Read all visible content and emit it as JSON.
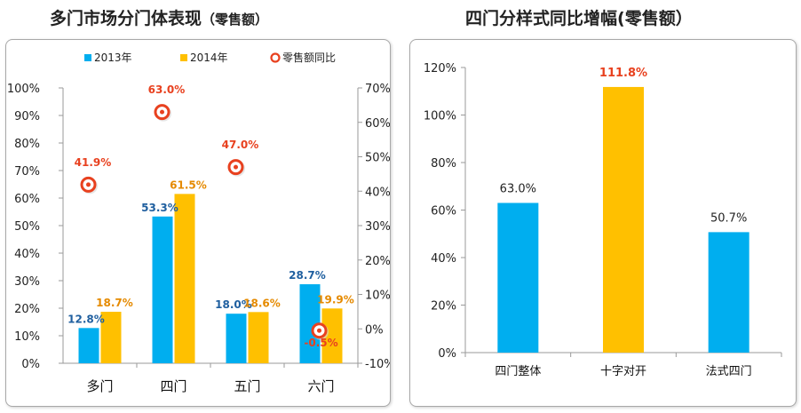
{
  "chart_data": [
    {
      "type": "bar+scatter",
      "title": "多门市场分门体表现",
      "subtitle": "（零售额）",
      "categories": [
        "多门",
        "四门",
        "五门",
        "六门"
      ],
      "series": [
        {
          "name": "2013年",
          "type": "bar",
          "axis": "left",
          "color": "#00AEEF",
          "values": [
            12.8,
            53.3,
            18.0,
            28.7
          ],
          "labels": [
            "12.8%",
            "53.3%",
            "18.0%",
            "28.7%"
          ]
        },
        {
          "name": "2014年",
          "type": "bar",
          "axis": "left",
          "color": "#FFC000",
          "values": [
            18.7,
            61.5,
            18.6,
            19.9
          ],
          "labels": [
            "18.7%",
            "61.5%",
            "18.6%",
            "19.9%"
          ]
        },
        {
          "name": "零售额同比",
          "type": "scatter",
          "axis": "right",
          "color": "#E8411F",
          "values": [
            41.9,
            63.0,
            47.0,
            -0.5
          ],
          "labels": [
            "41.9%",
            "63.0%",
            "47.0%",
            "-0.5%"
          ]
        }
      ],
      "y_left": {
        "min": 0,
        "max": 100,
        "step": 10,
        "ticks": [
          "0%",
          "10%",
          "20%",
          "30%",
          "40%",
          "50%",
          "60%",
          "70%",
          "80%",
          "90%",
          "100%"
        ]
      },
      "y_right": {
        "min": -10,
        "max": 70,
        "step": 10,
        "ticks": [
          "-10%",
          "0%",
          "10%",
          "20%",
          "30%",
          "40%",
          "50%",
          "60%",
          "70%"
        ]
      },
      "legend": "top",
      "grid": false
    },
    {
      "type": "bar",
      "title": "四门分样式同比增幅",
      "subtitle": "(零售额）",
      "categories": [
        "四门整体",
        "十字对开",
        "法式四门"
      ],
      "values": [
        63.0,
        111.8,
        50.7
      ],
      "labels": [
        "63.0%",
        "111.8%",
        "50.7%"
      ],
      "colors": [
        "#00AEEF",
        "#FFC000",
        "#00AEEF"
      ],
      "highlight_label_color": "#E8411F",
      "ylim": [
        0,
        120
      ],
      "ystep": 20,
      "ticks": [
        "0%",
        "20%",
        "40%",
        "60%",
        "80%",
        "100%",
        "120%"
      ],
      "grid": false
    }
  ]
}
